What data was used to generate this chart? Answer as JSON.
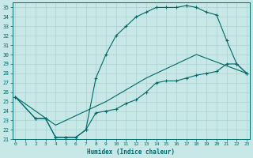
{
  "bg_color": "#c8e8e8",
  "grid_color": "#a8d0d0",
  "line_color": "#006868",
  "xlabel": "Humidex (Indice chaleur)",
  "line1_x": [
    0,
    2,
    3,
    4,
    5,
    6,
    7,
    8,
    9,
    10,
    11,
    12,
    13,
    14,
    15,
    16,
    17,
    18,
    19,
    20,
    21,
    22,
    23
  ],
  "line1_y": [
    25.5,
    23.2,
    23.2,
    21.2,
    21.2,
    21.2,
    22.0,
    27.5,
    30.0,
    32.0,
    33.0,
    34.0,
    34.5,
    35.0,
    35.0,
    35.0,
    35.2,
    35.0,
    34.5,
    34.2,
    31.5,
    29.0,
    28.0
  ],
  "line2_x": [
    0,
    2,
    3,
    4,
    5,
    6,
    7,
    8,
    9,
    10,
    11,
    12,
    13,
    14,
    15,
    16,
    17,
    18,
    19,
    20,
    21,
    22,
    23
  ],
  "line2_y": [
    25.5,
    23.2,
    23.2,
    21.2,
    21.2,
    21.2,
    22.0,
    23.8,
    24.0,
    24.2,
    24.8,
    25.2,
    26.0,
    27.0,
    27.2,
    27.2,
    27.5,
    27.8,
    28.0,
    28.2,
    29.0,
    29.0,
    28.0
  ],
  "line3_x": [
    0,
    4,
    9,
    13,
    18,
    23
  ],
  "line3_y": [
    25.5,
    22.5,
    25.0,
    27.5,
    30.0,
    28.0
  ],
  "xlim": [
    0,
    23
  ],
  "ylim": [
    21,
    35.5
  ],
  "yticks": [
    21,
    22,
    23,
    24,
    25,
    26,
    27,
    28,
    29,
    30,
    31,
    32,
    33,
    34,
    35
  ],
  "xticks": [
    0,
    1,
    2,
    3,
    4,
    5,
    6,
    7,
    8,
    9,
    10,
    11,
    12,
    13,
    14,
    15,
    16,
    17,
    18,
    19,
    20,
    21,
    22,
    23
  ]
}
